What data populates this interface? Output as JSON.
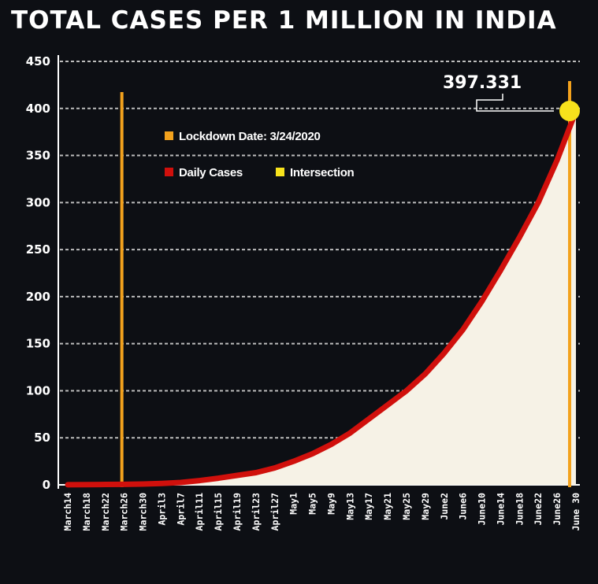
{
  "chart_data": {
    "type": "area",
    "title": "TOTAL CASES PER 1 MILLION IN INDIA",
    "xlabel": "",
    "ylabel": "",
    "ylim": [
      0,
      450
    ],
    "y_ticks": [
      0,
      50,
      100,
      150,
      200,
      250,
      300,
      350,
      400,
      450
    ],
    "categories": [
      "March14",
      "March18",
      "March22",
      "March26",
      "March30",
      "April3",
      "April7",
      "April11",
      "April15",
      "April19",
      "April23",
      "April27",
      "May1",
      "May5",
      "May9",
      "May13",
      "May17",
      "May21",
      "May25",
      "May29",
      "June2",
      "June6",
      "June10",
      "June14",
      "June18",
      "June22",
      "June26",
      "June 30"
    ],
    "grid": true,
    "legend": "top-left",
    "series": [
      {
        "name": "Daily Cases",
        "color": "#d0100c",
        "values": [
          0.1,
          0.2,
          0.4,
          0.5,
          0.8,
          1.5,
          2.5,
          4.5,
          7,
          10,
          13,
          18,
          25,
          33,
          43,
          55,
          70,
          85,
          100,
          118,
          140,
          165,
          195,
          228,
          263,
          300,
          345,
          397.331
        ]
      }
    ],
    "annotations": [
      {
        "type": "vline",
        "name": "Lockdown Date: 3/24/2020",
        "x": "March26",
        "color": "#f3a21d"
      },
      {
        "type": "vline",
        "x": "June 30",
        "color": "#f3a21d"
      },
      {
        "type": "point",
        "name": "Intersection",
        "x": "June 30",
        "y": 397.331,
        "label": "397.331",
        "color": "#f7e21c"
      }
    ],
    "fill_color": "#f6f2e6"
  }
}
